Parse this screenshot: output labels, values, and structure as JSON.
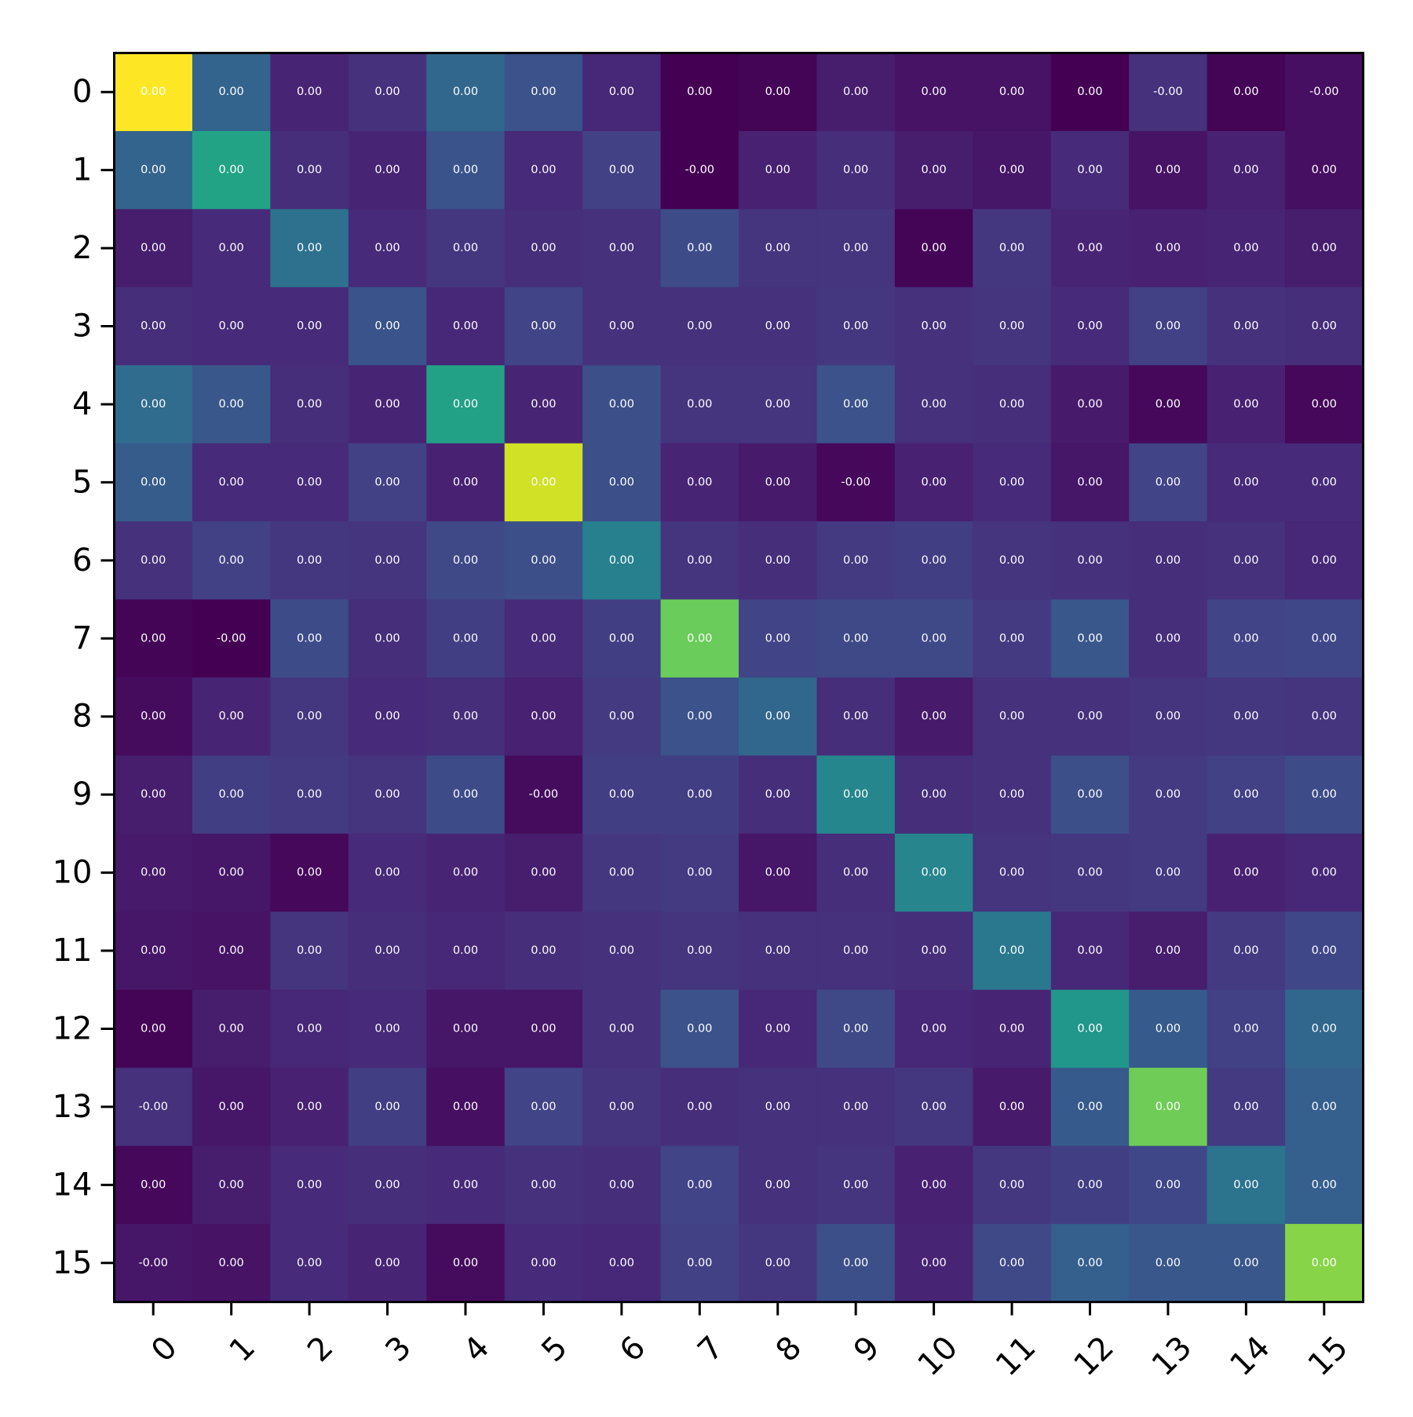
{
  "chart_data": {
    "type": "heatmap",
    "colormap": "viridis",
    "grid": false,
    "row_labels": [
      "0",
      "1",
      "2",
      "3",
      "4",
      "5",
      "6",
      "7",
      "8",
      "9",
      "10",
      "11",
      "12",
      "13",
      "14",
      "15"
    ],
    "col_labels": [
      "0",
      "1",
      "2",
      "3",
      "4",
      "5",
      "6",
      "7",
      "8",
      "9",
      "10",
      "11",
      "12",
      "13",
      "14",
      "15"
    ],
    "color_levels": [
      [
        1.0,
        0.32,
        0.1,
        0.14,
        0.33,
        0.25,
        0.11,
        0.0,
        0.01,
        0.08,
        0.05,
        0.05,
        0.0,
        0.14,
        0.01,
        0.04
      ],
      [
        0.32,
        0.58,
        0.13,
        0.1,
        0.26,
        0.12,
        0.19,
        0.0,
        0.09,
        0.13,
        0.08,
        0.06,
        0.12,
        0.05,
        0.09,
        0.04
      ],
      [
        0.08,
        0.12,
        0.37,
        0.12,
        0.16,
        0.13,
        0.14,
        0.23,
        0.15,
        0.15,
        0.01,
        0.16,
        0.1,
        0.09,
        0.1,
        0.08
      ],
      [
        0.13,
        0.12,
        0.12,
        0.26,
        0.11,
        0.2,
        0.14,
        0.14,
        0.14,
        0.16,
        0.14,
        0.15,
        0.12,
        0.19,
        0.14,
        0.13
      ],
      [
        0.35,
        0.27,
        0.13,
        0.1,
        0.57,
        0.1,
        0.24,
        0.15,
        0.15,
        0.25,
        0.14,
        0.13,
        0.07,
        0.02,
        0.09,
        0.02
      ],
      [
        0.29,
        0.12,
        0.12,
        0.19,
        0.09,
        0.93,
        0.24,
        0.1,
        0.07,
        0.02,
        0.09,
        0.12,
        0.06,
        0.2,
        0.12,
        0.12
      ],
      [
        0.14,
        0.19,
        0.16,
        0.15,
        0.22,
        0.24,
        0.43,
        0.15,
        0.13,
        0.17,
        0.18,
        0.15,
        0.14,
        0.13,
        0.14,
        0.11
      ],
      [
        0.01,
        0.0,
        0.23,
        0.13,
        0.18,
        0.12,
        0.18,
        0.77,
        0.2,
        0.22,
        0.22,
        0.17,
        0.27,
        0.13,
        0.2,
        0.21
      ],
      [
        0.03,
        0.1,
        0.16,
        0.12,
        0.13,
        0.09,
        0.17,
        0.25,
        0.33,
        0.13,
        0.07,
        0.14,
        0.14,
        0.15,
        0.16,
        0.15
      ],
      [
        0.08,
        0.18,
        0.17,
        0.15,
        0.23,
        0.03,
        0.18,
        0.18,
        0.13,
        0.46,
        0.13,
        0.14,
        0.24,
        0.17,
        0.19,
        0.23
      ],
      [
        0.07,
        0.06,
        0.02,
        0.12,
        0.1,
        0.08,
        0.16,
        0.17,
        0.06,
        0.13,
        0.45,
        0.15,
        0.16,
        0.17,
        0.09,
        0.11
      ],
      [
        0.06,
        0.05,
        0.15,
        0.13,
        0.11,
        0.13,
        0.14,
        0.15,
        0.14,
        0.14,
        0.13,
        0.4,
        0.11,
        0.08,
        0.17,
        0.21
      ],
      [
        0.01,
        0.08,
        0.11,
        0.12,
        0.06,
        0.06,
        0.14,
        0.25,
        0.11,
        0.22,
        0.11,
        0.1,
        0.52,
        0.28,
        0.19,
        0.33
      ],
      [
        0.14,
        0.06,
        0.09,
        0.18,
        0.04,
        0.2,
        0.15,
        0.13,
        0.14,
        0.14,
        0.16,
        0.07,
        0.28,
        0.78,
        0.17,
        0.3
      ],
      [
        0.02,
        0.08,
        0.12,
        0.13,
        0.12,
        0.14,
        0.13,
        0.2,
        0.14,
        0.15,
        0.09,
        0.16,
        0.18,
        0.21,
        0.38,
        0.3
      ],
      [
        0.06,
        0.05,
        0.12,
        0.1,
        0.03,
        0.12,
        0.11,
        0.19,
        0.16,
        0.24,
        0.1,
        0.22,
        0.3,
        0.27,
        0.27,
        0.82
      ]
    ],
    "cell_text": [
      [
        "0.00",
        "0.00",
        "0.00",
        "0.00",
        "0.00",
        "0.00",
        "0.00",
        "0.00",
        "0.00",
        "0.00",
        "0.00",
        "0.00",
        "0.00",
        "-0.00",
        "0.00",
        "-0.00"
      ],
      [
        "0.00",
        "0.00",
        "0.00",
        "0.00",
        "0.00",
        "0.00",
        "0.00",
        "-0.00",
        "0.00",
        "0.00",
        "0.00",
        "0.00",
        "0.00",
        "0.00",
        "0.00",
        "0.00"
      ],
      [
        "0.00",
        "0.00",
        "0.00",
        "0.00",
        "0.00",
        "0.00",
        "0.00",
        "0.00",
        "0.00",
        "0.00",
        "0.00",
        "0.00",
        "0.00",
        "0.00",
        "0.00",
        "0.00"
      ],
      [
        "0.00",
        "0.00",
        "0.00",
        "0.00",
        "0.00",
        "0.00",
        "0.00",
        "0.00",
        "0.00",
        "0.00",
        "0.00",
        "0.00",
        "0.00",
        "0.00",
        "0.00",
        "0.00"
      ],
      [
        "0.00",
        "0.00",
        "0.00",
        "0.00",
        "0.00",
        "0.00",
        "0.00",
        "0.00",
        "0.00",
        "0.00",
        "0.00",
        "0.00",
        "0.00",
        "0.00",
        "0.00",
        "0.00"
      ],
      [
        "0.00",
        "0.00",
        "0.00",
        "0.00",
        "0.00",
        "0.00",
        "0.00",
        "0.00",
        "0.00",
        "-0.00",
        "0.00",
        "0.00",
        "0.00",
        "0.00",
        "0.00",
        "0.00"
      ],
      [
        "0.00",
        "0.00",
        "0.00",
        "0.00",
        "0.00",
        "0.00",
        "0.00",
        "0.00",
        "0.00",
        "0.00",
        "0.00",
        "0.00",
        "0.00",
        "0.00",
        "0.00",
        "0.00"
      ],
      [
        "0.00",
        "-0.00",
        "0.00",
        "0.00",
        "0.00",
        "0.00",
        "0.00",
        "0.00",
        "0.00",
        "0.00",
        "0.00",
        "0.00",
        "0.00",
        "0.00",
        "0.00",
        "0.00"
      ],
      [
        "0.00",
        "0.00",
        "0.00",
        "0.00",
        "0.00",
        "0.00",
        "0.00",
        "0.00",
        "0.00",
        "0.00",
        "0.00",
        "0.00",
        "0.00",
        "0.00",
        "0.00",
        "0.00"
      ],
      [
        "0.00",
        "0.00",
        "0.00",
        "0.00",
        "0.00",
        "-0.00",
        "0.00",
        "0.00",
        "0.00",
        "0.00",
        "0.00",
        "0.00",
        "0.00",
        "0.00",
        "0.00",
        "0.00"
      ],
      [
        "0.00",
        "0.00",
        "0.00",
        "0.00",
        "0.00",
        "0.00",
        "0.00",
        "0.00",
        "0.00",
        "0.00",
        "0.00",
        "0.00",
        "0.00",
        "0.00",
        "0.00",
        "0.00"
      ],
      [
        "0.00",
        "0.00",
        "0.00",
        "0.00",
        "0.00",
        "0.00",
        "0.00",
        "0.00",
        "0.00",
        "0.00",
        "0.00",
        "0.00",
        "0.00",
        "0.00",
        "0.00",
        "0.00"
      ],
      [
        "0.00",
        "0.00",
        "0.00",
        "0.00",
        "0.00",
        "0.00",
        "0.00",
        "0.00",
        "0.00",
        "0.00",
        "0.00",
        "0.00",
        "0.00",
        "0.00",
        "0.00",
        "0.00"
      ],
      [
        "-0.00",
        "0.00",
        "0.00",
        "0.00",
        "0.00",
        "0.00",
        "0.00",
        "0.00",
        "0.00",
        "0.00",
        "0.00",
        "0.00",
        "0.00",
        "0.00",
        "0.00",
        "0.00"
      ],
      [
        "0.00",
        "0.00",
        "0.00",
        "0.00",
        "0.00",
        "0.00",
        "0.00",
        "0.00",
        "0.00",
        "0.00",
        "0.00",
        "0.00",
        "0.00",
        "0.00",
        "0.00",
        "0.00"
      ],
      [
        "-0.00",
        "0.00",
        "0.00",
        "0.00",
        "0.00",
        "0.00",
        "0.00",
        "0.00",
        "0.00",
        "0.00",
        "0.00",
        "0.00",
        "0.00",
        "0.00",
        "0.00",
        "0.00"
      ]
    ],
    "title": "",
    "xlabel": "",
    "ylabel": ""
  }
}
